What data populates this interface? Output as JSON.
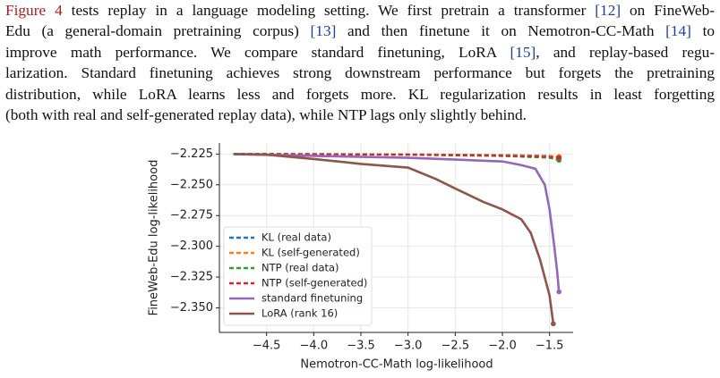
{
  "paragraph": {
    "lines": [
      [
        {
          "text": "Figure 4",
          "color": "#b01c1c"
        },
        {
          "text": " tests replay in a language modeling setting. We first pretrain a transformer "
        },
        {
          "text": "[12]",
          "color": "#1c3f9e"
        },
        {
          "text": " on FineWeb-"
        }
      ],
      [
        {
          "text": "Edu (a general-domain pretraining corpus) "
        },
        {
          "text": "[13]",
          "color": "#1c3f9e"
        },
        {
          "text": " and then finetune it on Nemotron-CC-Math "
        },
        {
          "text": "[14]",
          "color": "#1c3f9e"
        },
        {
          "text": " to"
        }
      ],
      [
        {
          "text": "improve math performance. We compare standard finetuning, LoRA "
        },
        {
          "text": "[15]",
          "color": "#1c3f9e"
        },
        {
          "text": ", and replay-based regu-"
        }
      ],
      [
        {
          "text": "larization. Standard finetuning achieves strong downstream performance but forgets the pretraining"
        }
      ],
      [
        {
          "text": "distribution, while LoRA learns less and forgets more. KL regularization results in least forgetting"
        }
      ],
      [
        {
          "text": "(both with real and self-generated replay data), while NTP lags only slightly behind."
        }
      ]
    ]
  },
  "chart_data": {
    "type": "line",
    "x_label": "Nemotron-CC-Math log-likelihood",
    "y_label": "FineWeb-Edu log-likelihood",
    "xlim": [
      -5.0,
      -1.25
    ],
    "ylim": [
      -2.37,
      -2.216
    ],
    "xticks": [
      {
        "value": -4.5,
        "label": "−4.5"
      },
      {
        "value": -4.0,
        "label": "−4.0"
      },
      {
        "value": -3.5,
        "label": "−3.5"
      },
      {
        "value": -3.0,
        "label": "−3.0"
      },
      {
        "value": -2.5,
        "label": "−2.5"
      },
      {
        "value": -2.0,
        "label": "−2.0"
      },
      {
        "value": -1.5,
        "label": "−1.5"
      }
    ],
    "yticks": [
      {
        "value": -2.225,
        "label": "−2.225"
      },
      {
        "value": -2.25,
        "label": "−2.250"
      },
      {
        "value": -2.275,
        "label": "−2.275"
      },
      {
        "value": -2.3,
        "label": "−2.300"
      },
      {
        "value": -2.325,
        "label": "−2.325"
      },
      {
        "value": -2.35,
        "label": "−2.350"
      }
    ],
    "grid": true,
    "legend": "lower left",
    "series": [
      {
        "name": "KL (real data)",
        "color": "#1f77b4",
        "linestyle": "dashed",
        "x": [
          -4.85,
          -3.0,
          -2.0,
          -1.5,
          -1.4
        ],
        "values": [
          -2.2248,
          -2.2252,
          -2.2258,
          -2.2265,
          -2.2275
        ]
      },
      {
        "name": "KL (self-generated)",
        "color": "#ff7f0e",
        "linestyle": "dashed",
        "x": [
          -4.85,
          -3.0,
          -2.0,
          -1.5,
          -1.4
        ],
        "values": [
          -2.2248,
          -2.2253,
          -2.226,
          -2.2268,
          -2.227
        ]
      },
      {
        "name": "NTP (real data)",
        "color": "#2ca02c",
        "linestyle": "dashed",
        "x": [
          -4.85,
          -3.0,
          -2.0,
          -1.5,
          -1.4
        ],
        "values": [
          -2.2249,
          -2.2256,
          -2.2266,
          -2.228,
          -2.23
        ]
      },
      {
        "name": "NTP (self-generated)",
        "color": "#d62728",
        "linestyle": "dashed",
        "x": [
          -4.85,
          -3.0,
          -2.0,
          -1.5,
          -1.4
        ],
        "values": [
          -2.2249,
          -2.2255,
          -2.2263,
          -2.2273,
          -2.228
        ]
      },
      {
        "name": "standard finetuning",
        "color": "#9467bd",
        "linestyle": "solid",
        "x": [
          -4.85,
          -4.0,
          -3.0,
          -2.0,
          -1.8,
          -1.65,
          -1.55,
          -1.5,
          -1.45,
          -1.42,
          -1.4
        ],
        "values": [
          -2.225,
          -2.2265,
          -2.228,
          -2.231,
          -2.234,
          -2.237,
          -2.25,
          -2.27,
          -2.3,
          -2.32,
          -2.337
        ]
      },
      {
        "name": "LoRA (rank 16)",
        "color": "#8c564b",
        "linestyle": "solid",
        "x": [
          -4.85,
          -4.5,
          -4.0,
          -3.5,
          -3.0,
          -2.7,
          -2.5,
          -2.2,
          -2.0,
          -1.8,
          -1.7,
          -1.6,
          -1.5,
          -1.46
        ],
        "values": [
          -2.225,
          -2.2255,
          -2.229,
          -2.233,
          -2.236,
          -2.2455,
          -2.253,
          -2.264,
          -2.27,
          -2.278,
          -2.289,
          -2.311,
          -2.34,
          -2.363
        ]
      }
    ]
  }
}
